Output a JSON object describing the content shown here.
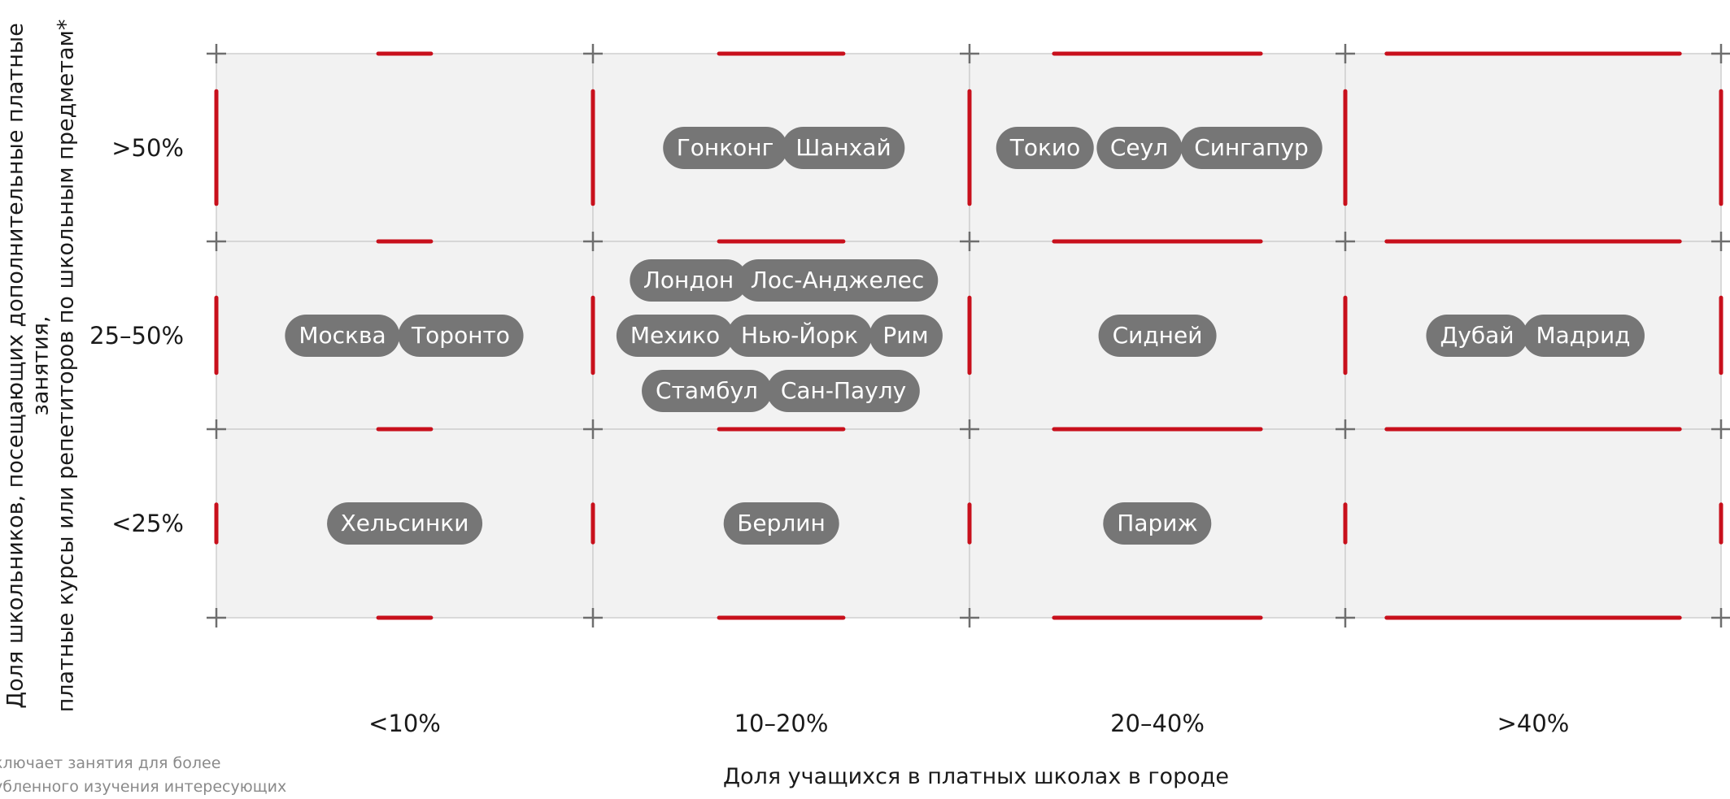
{
  "chart_data": {
    "type": "table",
    "title": "",
    "ylabel": "Доля школьников, посещающих дополнительные платные занятия,\nплатные курсы или репетиторов по школьным предметам*",
    "xlabel": "Доля учащихся в платных школах в городе",
    "x_categories": [
      "<10%",
      "10–20%",
      "20–40%",
      ">40%"
    ],
    "y_categories": [
      ">50%",
      "25–50%",
      "<25%"
    ],
    "cells": [
      {
        "x": "10–20%",
        "y": ">50%",
        "cities": [
          "Гонконг",
          "Шанхай"
        ]
      },
      {
        "x": "20–40%",
        "y": ">50%",
        "cities": [
          "Токио",
          "Сеул",
          "Сингапур"
        ]
      },
      {
        "x": "<10%",
        "y": "25–50%",
        "cities": [
          "Москва",
          "Торонто"
        ]
      },
      {
        "x": "10–20%",
        "y": "25–50%",
        "cities": [
          "Лондон",
          "Лос-Анджелес",
          "Мехико",
          "Нью-Йорк",
          "Рим",
          "Стамбул",
          "Сан-Паулу"
        ]
      },
      {
        "x": "20–40%",
        "y": "25–50%",
        "cities": [
          "Сидней"
        ]
      },
      {
        "x": ">40%",
        "y": "25–50%",
        "cities": [
          "Дубай",
          "Мадрид"
        ]
      },
      {
        "x": "<10%",
        "y": "<25%",
        "cities": [
          "Хельсинки"
        ]
      },
      {
        "x": "10–20%",
        "y": "<25%",
        "cities": [
          "Берлин"
        ]
      },
      {
        "x": "20–40%",
        "y": "<25%",
        "cities": [
          "Париж"
        ]
      }
    ],
    "grid": true,
    "colors": {
      "cell": "#f2f2f2",
      "accent": "#c8101c",
      "pill": "#767676",
      "pill_text": "#ffffff"
    }
  },
  "footnote": "ключает занятия для более\nубленного изучения интересующих"
}
